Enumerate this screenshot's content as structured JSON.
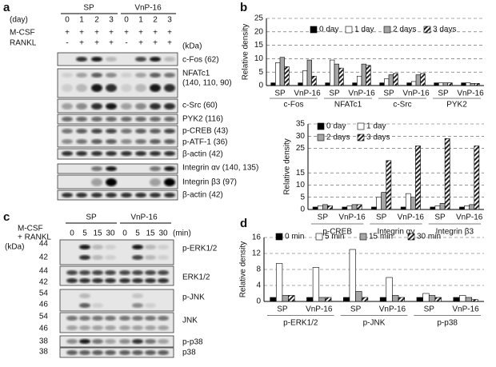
{
  "figure": {
    "panel_a": {
      "label": "a",
      "day_label": "(day)",
      "days": [
        "0",
        "1",
        "2",
        "3",
        "0",
        "1",
        "2",
        "3"
      ],
      "groups": [
        "SP",
        "VnP-16"
      ],
      "mcsf_label": "M-CSF",
      "mcsf": [
        "+",
        "+",
        "+",
        "+",
        "+",
        "+",
        "+",
        "+"
      ],
      "rankl_label": "RANKL",
      "rankl": [
        "-",
        "+",
        "+",
        "+",
        "-",
        "+",
        "+",
        "+"
      ],
      "kda_label": "(kDa)",
      "bands": [
        "c-Fos (62)",
        "NFATc1",
        "(140, 110, 90)",
        "c-Src (60)",
        "PYK2 (116)",
        "p-CREB (43)",
        "p-ATF-1 (36)",
        "β-actin (42)",
        "Integrin αv (140, 135)",
        "Integrin β3 (97)",
        "β-actin (42)"
      ]
    },
    "panel_c": {
      "label": "c",
      "treatment": [
        "M-CSF",
        "+ RANKL"
      ],
      "kda_label": "(kDa)",
      "groups": [
        "SP",
        "VnP-16"
      ],
      "times": [
        "0",
        "5",
        "15",
        "30",
        "0",
        "5",
        "15",
        "30"
      ],
      "min_label": "(min)",
      "bands": [
        "p-ERK1/2",
        "ERK1/2",
        "p-JNK",
        "JNK",
        "p-p38",
        "p38"
      ],
      "mw": [
        "44",
        "42",
        "44",
        "42",
        "54",
        "46",
        "54",
        "46",
        "38",
        "38"
      ]
    }
  },
  "chart_data": [
    {
      "type": "bar",
      "panel_label": "b",
      "y_label": "Relative density",
      "groups": [
        "c-Fos",
        "NFATc1",
        "c-Src",
        "PYK2"
      ],
      "categories": [
        "SP",
        "VnP-16",
        "SP",
        "VnP-16",
        "SP",
        "VnP-16",
        "SP",
        "VnP-16"
      ],
      "series": [
        {
          "name": "0 day",
          "color": "#000000",
          "values": [
            1,
            1,
            1,
            1,
            1,
            1,
            1,
            1
          ]
        },
        {
          "name": "1 day",
          "color": "#ffffff",
          "values": [
            8.5,
            5.5,
            9.5,
            3.5,
            2.5,
            1.5,
            1,
            1
          ]
        },
        {
          "name": "2 days",
          "color": "#a6a6a6",
          "values": [
            10.5,
            9.5,
            8,
            8,
            4,
            4,
            1,
            0.8
          ]
        },
        {
          "name": "3 days",
          "color": "#222222",
          "hatch": true,
          "values": [
            7,
            3.5,
            6.5,
            7.5,
            4.5,
            4.5,
            1,
            0.8
          ]
        }
      ],
      "ylim": [
        0,
        25
      ],
      "yticks": [
        0,
        5,
        10,
        15,
        20,
        25
      ],
      "grid": true
    },
    {
      "type": "bar",
      "y_label": "Relative density",
      "groups": [
        "p-CREB",
        "Integrin αv",
        "Integrin β3"
      ],
      "categories": [
        "SP",
        "VnP-16",
        "SP",
        "VnP-16",
        "SP",
        "VnP-16"
      ],
      "series": [
        {
          "name": "0 day",
          "color": "#000000",
          "values": [
            1,
            1,
            1,
            1,
            1,
            1
          ]
        },
        {
          "name": "1 day",
          "color": "#ffffff",
          "values": [
            1.5,
            1.5,
            5,
            6.5,
            1.5,
            1.5
          ]
        },
        {
          "name": "2 days",
          "color": "#a6a6a6",
          "values": [
            2,
            2,
            7,
            5,
            2.5,
            2
          ]
        },
        {
          "name": "3 days",
          "color": "#222222",
          "hatch": true,
          "values": [
            1.5,
            2,
            20,
            26,
            29,
            26
          ]
        }
      ],
      "ylim": [
        0,
        35
      ],
      "yticks": [
        0,
        5,
        10,
        15,
        25,
        30,
        35
      ],
      "grid": true
    },
    {
      "type": "bar",
      "panel_label": "d",
      "y_label": "Relative density",
      "groups": [
        "p-ERK1/2",
        "p-JNK",
        "p-p38"
      ],
      "categories": [
        "SP",
        "VnP-16",
        "SP",
        "VnP-16",
        "SP",
        "VnP-16"
      ],
      "series": [
        {
          "name": "0 min",
          "color": "#000000",
          "values": [
            1,
            1,
            1,
            1,
            1,
            1
          ]
        },
        {
          "name": "5 min",
          "color": "#ffffff",
          "values": [
            9.5,
            8.5,
            13,
            6,
            2,
            1.5
          ]
        },
        {
          "name": "15 min",
          "color": "#a6a6a6",
          "values": [
            1.5,
            1,
            2.5,
            1.5,
            1.5,
            1
          ]
        },
        {
          "name": "30 min",
          "color": "#222222",
          "hatch": true,
          "values": [
            1.5,
            1,
            1,
            1,
            1,
            0.5
          ]
        }
      ],
      "ylim": [
        0,
        16
      ],
      "yticks": [
        0,
        4,
        8,
        12,
        16
      ],
      "grid": true
    }
  ]
}
